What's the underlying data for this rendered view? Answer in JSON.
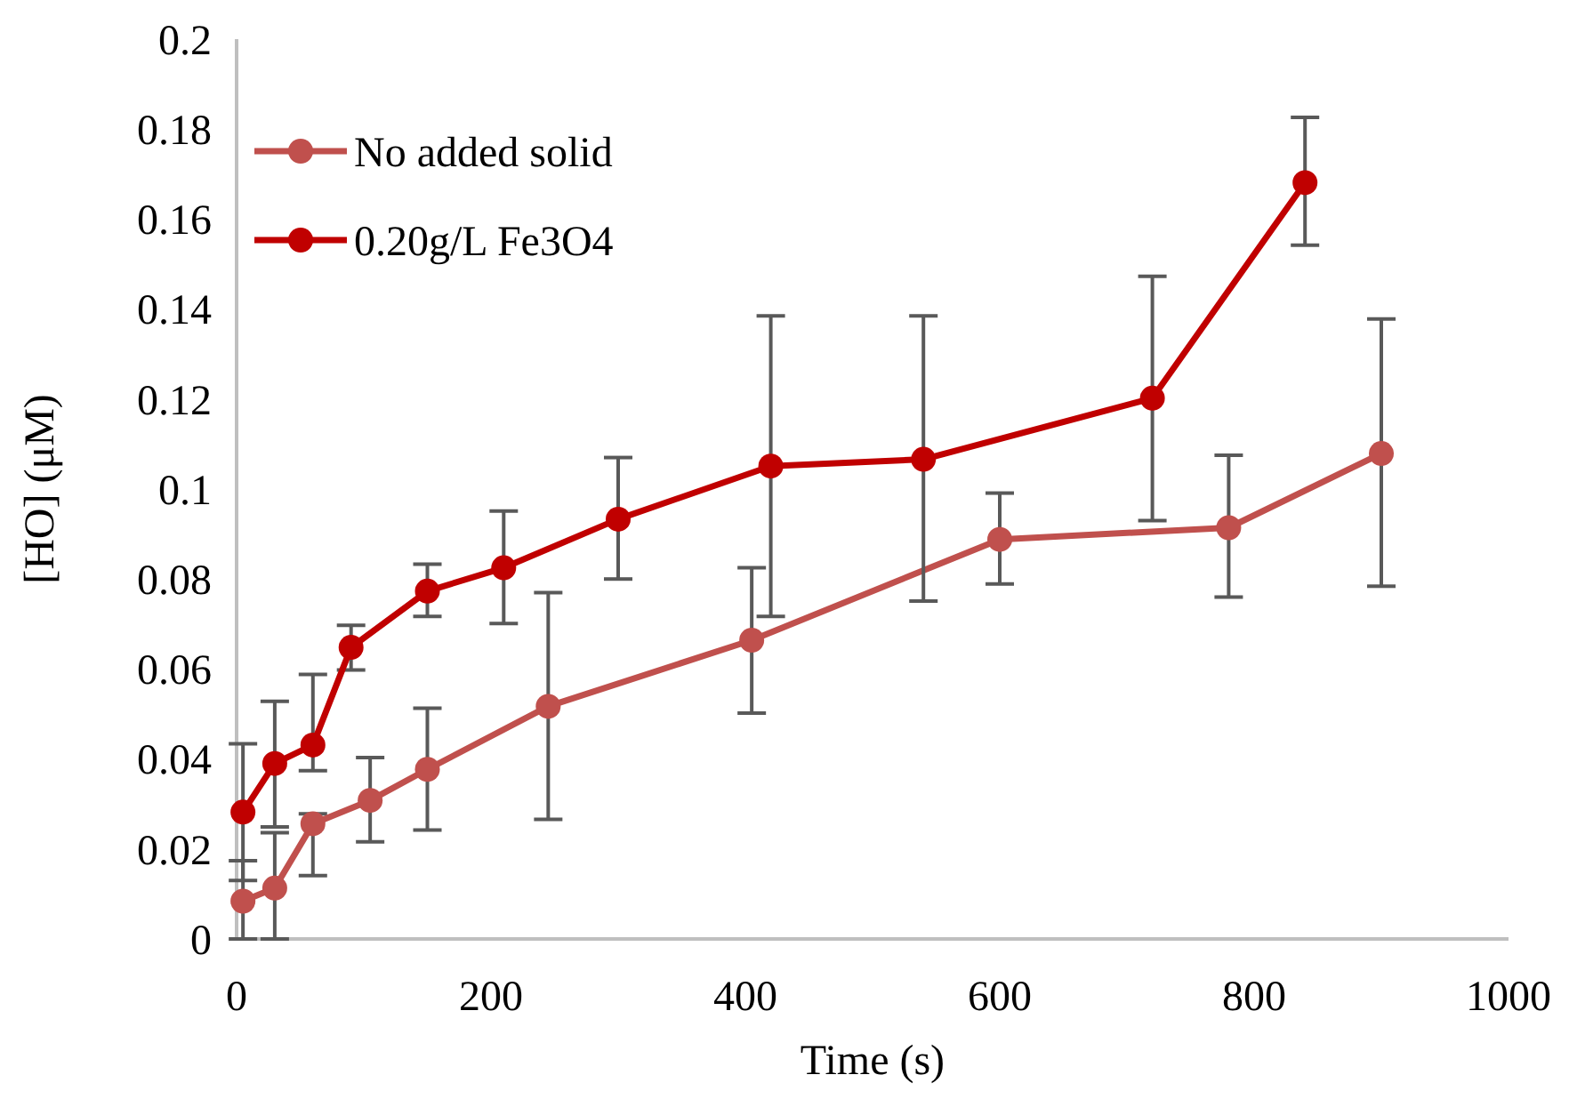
{
  "chart_data": {
    "type": "line",
    "xlabel": "Time (s)",
    "ylabel": "[HO] (μM)",
    "xlim": [
      0,
      1000
    ],
    "xticks": [
      0,
      200,
      400,
      600,
      800,
      1000
    ],
    "ylim": [
      0,
      0.2
    ],
    "yticks": [
      0,
      0.02,
      0.04,
      0.06,
      0.08,
      0.1,
      0.12,
      0.14,
      0.16,
      0.18,
      0.2
    ],
    "grid": false,
    "legend": "top left",
    "marker": "circle",
    "line_style": "solid",
    "series": [
      {
        "name": "No added solid",
        "color": "#c0504d",
        "x": [
          5,
          30,
          60,
          105,
          150,
          245,
          405,
          600,
          780,
          900
        ],
        "values": [
          0.0084,
          0.0113,
          0.0256,
          0.0308,
          0.0377,
          0.0517,
          0.0664,
          0.0888,
          0.0914,
          0.1079
        ],
        "errors": [
          [
            0,
            0.0174
          ],
          [
            0,
            0.0236
          ],
          [
            0.0141,
            0.0278
          ],
          [
            0.0216,
            0.0403
          ],
          [
            0.0242,
            0.0513
          ],
          [
            0.0266,
            0.077
          ],
          [
            0.0502,
            0.0825
          ],
          [
            0.0789,
            0.0991
          ],
          [
            0.076,
            0.1075
          ],
          [
            0.0784,
            0.1378
          ]
        ]
      },
      {
        "name": "0.20g/L Fe3O4",
        "color": "#c00000",
        "x": [
          5,
          30,
          60,
          90,
          150,
          210,
          300,
          420,
          540,
          720,
          840
        ],
        "values": [
          0.0282,
          0.039,
          0.0431,
          0.0648,
          0.0773,
          0.0825,
          0.0933,
          0.1051,
          0.1066,
          0.1202,
          0.1681
        ],
        "errors": [
          [
            0.013,
            0.0434
          ],
          [
            0.0249,
            0.0528
          ],
          [
            0.0374,
            0.0588
          ],
          [
            0.0598,
            0.0697
          ],
          [
            0.0717,
            0.0833
          ],
          [
            0.0701,
            0.0951
          ],
          [
            0.08,
            0.107
          ],
          [
            0.0717,
            0.1385
          ],
          [
            0.0751,
            0.1385
          ],
          [
            0.093,
            0.1473
          ],
          [
            0.1542,
            0.1826
          ]
        ]
      }
    ]
  }
}
